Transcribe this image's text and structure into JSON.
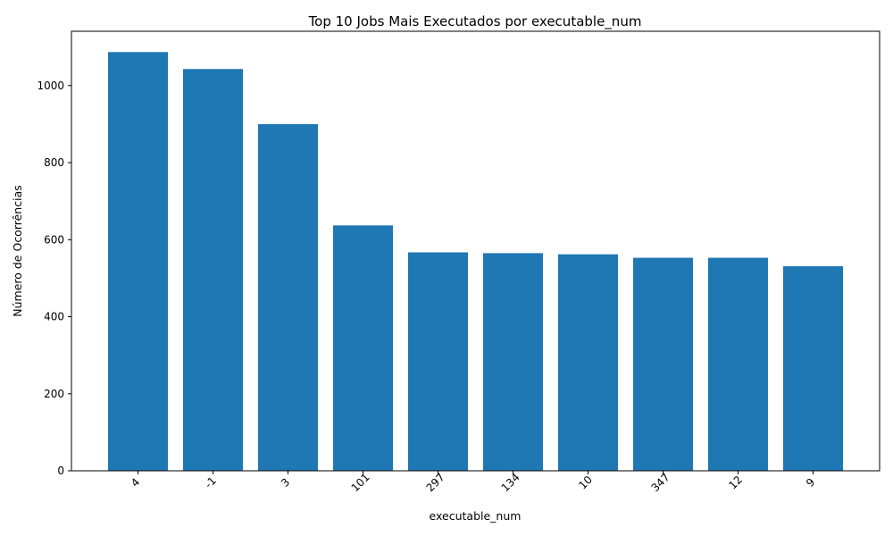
{
  "chart_data": {
    "type": "bar",
    "title": "Top 10 Jobs Mais Executados por executable_num",
    "xlabel": "executable_num",
    "ylabel": "Número de Ocorrências",
    "categories": [
      "4",
      "-1",
      "3",
      "101",
      "297",
      "134",
      "10",
      "347",
      "12",
      "9"
    ],
    "values": [
      1087,
      1043,
      900,
      637,
      567,
      565,
      562,
      553,
      553,
      531
    ],
    "ylim": [
      0,
      1141
    ],
    "yticks": [
      0,
      200,
      400,
      600,
      800,
      1000
    ],
    "bar_color": "#1f77b4",
    "grid": false,
    "x_tick_rotation_deg": 45
  }
}
